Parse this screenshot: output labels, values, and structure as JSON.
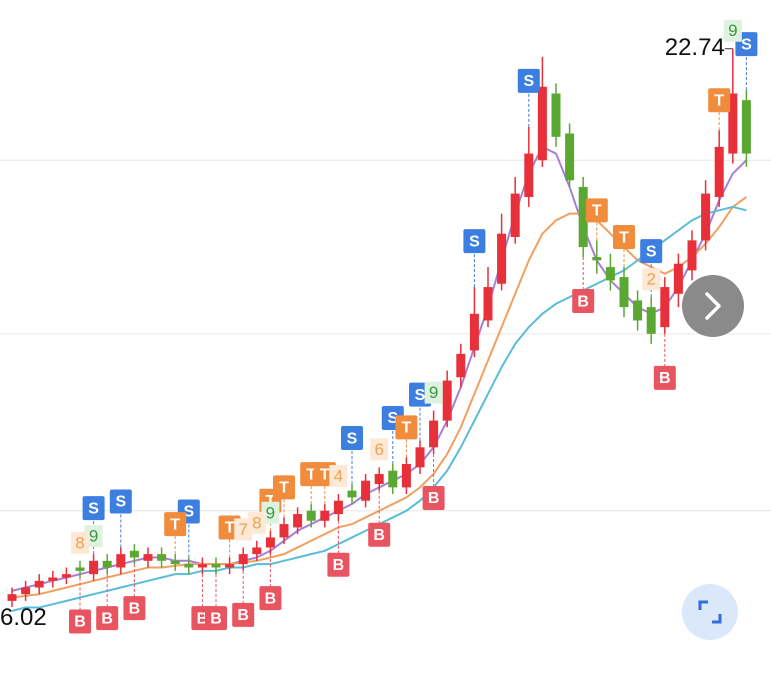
{
  "chart_data": {
    "type": "candlestick",
    "open": [
      6.2,
      6.4,
      6.6,
      6.8,
      6.9,
      7.2,
      7.0,
      7.4,
      7.2,
      7.7,
      7.4,
      7.6,
      7.4,
      7.3,
      7.2,
      7.3,
      7.2,
      7.3,
      7.6,
      7.8,
      8.1,
      8.4,
      8.9,
      8.6,
      8.8,
      9.5,
      9.2,
      9.7,
      10.1,
      9.6,
      10.2,
      10.8,
      11.6,
      12.9,
      13.7,
      14.6,
      15.7,
      17.1,
      18.3,
      19.4,
      21.4,
      20.2,
      18.6,
      16.5,
      16.2,
      15.9,
      15.2,
      15.0,
      14.4,
      15.4,
      16.1,
      17.0,
      18.3,
      19.6,
      21.2
    ],
    "high": [
      6.6,
      6.8,
      7.0,
      7.1,
      7.2,
      7.4,
      7.6,
      7.6,
      7.8,
      7.9,
      7.8,
      7.8,
      7.6,
      7.5,
      7.5,
      7.5,
      7.5,
      7.8,
      8.0,
      8.3,
      8.7,
      9.0,
      9.1,
      9.1,
      9.4,
      9.7,
      10.0,
      10.2,
      10.3,
      10.5,
      11.0,
      11.9,
      13.1,
      13.9,
      15.6,
      16.2,
      17.8,
      18.9,
      20.4,
      22.5,
      21.7,
      20.5,
      18.9,
      17.0,
      16.6,
      16.2,
      15.5,
      15.3,
      15.9,
      16.6,
      17.3,
      18.8,
      20.3,
      22.74,
      21.5
    ],
    "low": [
      6.02,
      6.2,
      6.4,
      6.6,
      6.7,
      6.9,
      6.8,
      7.0,
      7.0,
      7.3,
      7.2,
      7.2,
      7.1,
      7.0,
      7.0,
      7.0,
      7.0,
      7.1,
      7.4,
      7.6,
      7.9,
      8.2,
      8.4,
      8.4,
      8.6,
      9.1,
      9.0,
      9.5,
      9.4,
      9.4,
      10.0,
      10.6,
      11.4,
      12.6,
      13.5,
      14.4,
      15.5,
      16.9,
      18.0,
      19.2,
      19.8,
      18.6,
      16.5,
      16.0,
      15.5,
      14.7,
      14.3,
      13.9,
      14.2,
      15.0,
      15.8,
      16.7,
      18.0,
      19.3,
      19.2
    ],
    "close": [
      6.4,
      6.6,
      6.8,
      6.9,
      7.0,
      7.1,
      7.4,
      7.2,
      7.6,
      7.5,
      7.6,
      7.4,
      7.3,
      7.2,
      7.3,
      7.2,
      7.3,
      7.6,
      7.8,
      8.1,
      8.5,
      8.8,
      8.6,
      8.9,
      9.2,
      9.3,
      9.8,
      10.0,
      9.6,
      10.3,
      10.8,
      11.6,
      12.8,
      13.6,
      14.8,
      15.6,
      17.2,
      18.4,
      19.6,
      21.6,
      20.1,
      18.8,
      16.8,
      16.4,
      15.8,
      15.0,
      14.6,
      14.2,
      15.6,
      16.3,
      17.0,
      18.4,
      19.8,
      21.4,
      19.6
    ],
    "up_color": "#e8303a",
    "down_color": "#5aa832",
    "ylim": [
      3.5,
      24.2
    ],
    "ygrid": [
      19.4,
      14.2,
      8.9
    ],
    "moving_averages": [
      {
        "color": "#a77fd6",
        "values": [
          6.5,
          6.6,
          6.7,
          6.8,
          6.9,
          7.0,
          7.1,
          7.2,
          7.3,
          7.4,
          7.5,
          7.5,
          7.4,
          7.4,
          7.3,
          7.3,
          7.3,
          7.4,
          7.5,
          7.7,
          8.0,
          8.3,
          8.5,
          8.7,
          8.9,
          9.1,
          9.4,
          9.6,
          9.8,
          10.0,
          10.3,
          10.8,
          11.6,
          12.6,
          13.8,
          15.0,
          16.4,
          17.8,
          19.0,
          19.8,
          19.6,
          18.6,
          17.4,
          16.4,
          15.8,
          15.4,
          15.0,
          14.8,
          15.0,
          15.6,
          16.4,
          17.2,
          18.2,
          19.0,
          19.4
        ]
      },
      {
        "color": "#f0a060",
        "values": [
          6.3,
          6.35,
          6.4,
          6.5,
          6.6,
          6.7,
          6.8,
          6.9,
          7.0,
          7.1,
          7.2,
          7.2,
          7.25,
          7.3,
          7.3,
          7.3,
          7.3,
          7.35,
          7.4,
          7.5,
          7.6,
          7.8,
          8.0,
          8.2,
          8.4,
          8.5,
          8.7,
          8.9,
          9.1,
          9.3,
          9.6,
          10.0,
          10.6,
          11.4,
          12.4,
          13.4,
          14.4,
          15.4,
          16.4,
          17.2,
          17.6,
          17.8,
          17.8,
          17.6,
          17.2,
          16.8,
          16.4,
          16.2,
          16.0,
          16.2,
          16.5,
          16.9,
          17.4,
          18.0,
          18.3
        ]
      },
      {
        "color": "#5bbcd8",
        "values": [
          5.9,
          6.0,
          6.0,
          6.1,
          6.2,
          6.3,
          6.4,
          6.5,
          6.6,
          6.7,
          6.8,
          6.9,
          7.0,
          7.0,
          7.1,
          7.1,
          7.2,
          7.2,
          7.3,
          7.3,
          7.4,
          7.5,
          7.6,
          7.7,
          7.9,
          8.1,
          8.3,
          8.5,
          8.7,
          8.9,
          9.2,
          9.6,
          10.1,
          10.8,
          11.6,
          12.4,
          13.2,
          13.9,
          14.4,
          14.8,
          15.1,
          15.3,
          15.5,
          15.7,
          15.9,
          16.1,
          16.4,
          16.7,
          17.0,
          17.3,
          17.6,
          17.8,
          17.9,
          18.0,
          17.9
        ]
      }
    ],
    "signals": [
      {
        "label": "S",
        "index": 6
      },
      {
        "label": "S",
        "index": 8
      },
      {
        "label": "S",
        "index": 13
      },
      {
        "label": "S",
        "index": 25
      },
      {
        "label": "S",
        "index": 28
      },
      {
        "label": "S",
        "index": 30
      },
      {
        "label": "S",
        "index": 34
      },
      {
        "label": "S",
        "index": 38
      },
      {
        "label": "S",
        "index": 47
      },
      {
        "label": "S",
        "index": 54
      },
      {
        "label": "B",
        "index": 5
      },
      {
        "label": "B",
        "index": 7
      },
      {
        "label": "B",
        "index": 9
      },
      {
        "label": "B",
        "index": 14
      },
      {
        "label": "B",
        "index": 15
      },
      {
        "label": "B",
        "index": 17
      },
      {
        "label": "B",
        "index": 19
      },
      {
        "label": "B",
        "index": 24
      },
      {
        "label": "B",
        "index": 27
      },
      {
        "label": "B",
        "index": 31
      },
      {
        "label": "B",
        "index": 42
      },
      {
        "label": "B",
        "index": 48
      },
      {
        "label": "T",
        "index": 12
      },
      {
        "label": "T",
        "index": 16
      },
      {
        "label": "T",
        "index": 19
      },
      {
        "label": "T",
        "index": 20
      },
      {
        "label": "T",
        "index": 22
      },
      {
        "label": "T",
        "index": 23
      },
      {
        "label": "T",
        "index": 29
      },
      {
        "label": "T",
        "index": 43
      },
      {
        "label": "T",
        "index": 45
      },
      {
        "label": "T",
        "index": 52
      },
      {
        "label": "9",
        "index": 6
      },
      {
        "label": "9",
        "index": 19
      },
      {
        "label": "9",
        "index": 31
      },
      {
        "label": "9",
        "index": 53
      },
      {
        "label": "8",
        "index": 5
      },
      {
        "label": "8",
        "index": 18
      },
      {
        "label": "7",
        "index": 17
      },
      {
        "label": "6",
        "index": 27
      },
      {
        "label": "4",
        "index": 24
      },
      {
        "label": "2",
        "index": 47
      }
    ]
  }
}
